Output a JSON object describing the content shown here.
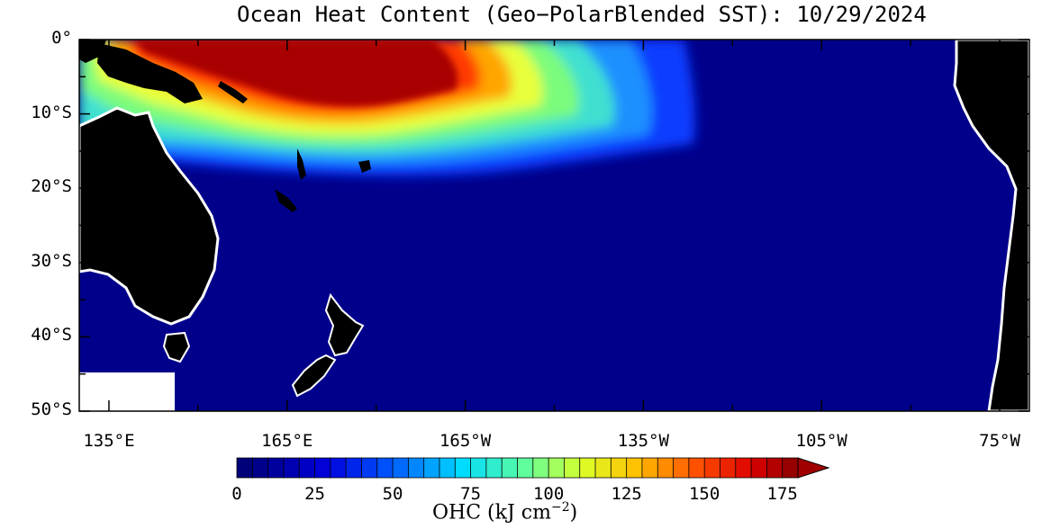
{
  "title": "Ocean Heat Content (Geo−PolarBlended SST): 10/29/2024",
  "map": {
    "lat_labels": [
      "0°",
      "10°S",
      "20°S",
      "30°S",
      "40°S",
      "50°S"
    ],
    "lat_values": [
      0,
      -10,
      -20,
      -30,
      -40,
      -50
    ],
    "lon_labels": [
      "135°E",
      "165°E",
      "165°W",
      "135°W",
      "105°W",
      "75°W"
    ],
    "lon_values": [
      135,
      165,
      195,
      225,
      255,
      285
    ],
    "extent": {
      "lon_min": 130,
      "lon_max": 290,
      "lat_min": -50,
      "lat_max": 0
    },
    "land_color": "#000000",
    "background_ocean_color": "#00008b"
  },
  "colorbar": {
    "tick_labels": [
      "0",
      "25",
      "50",
      "75",
      "100",
      "125",
      "150",
      "175"
    ],
    "tick_values": [
      0,
      25,
      50,
      75,
      100,
      125,
      150,
      175
    ],
    "min": 0,
    "max": 180,
    "step": 5,
    "label_main": "OHC (kJ cm",
    "label_sup": "−2",
    "label_end": ")",
    "extend": "max"
  }
}
